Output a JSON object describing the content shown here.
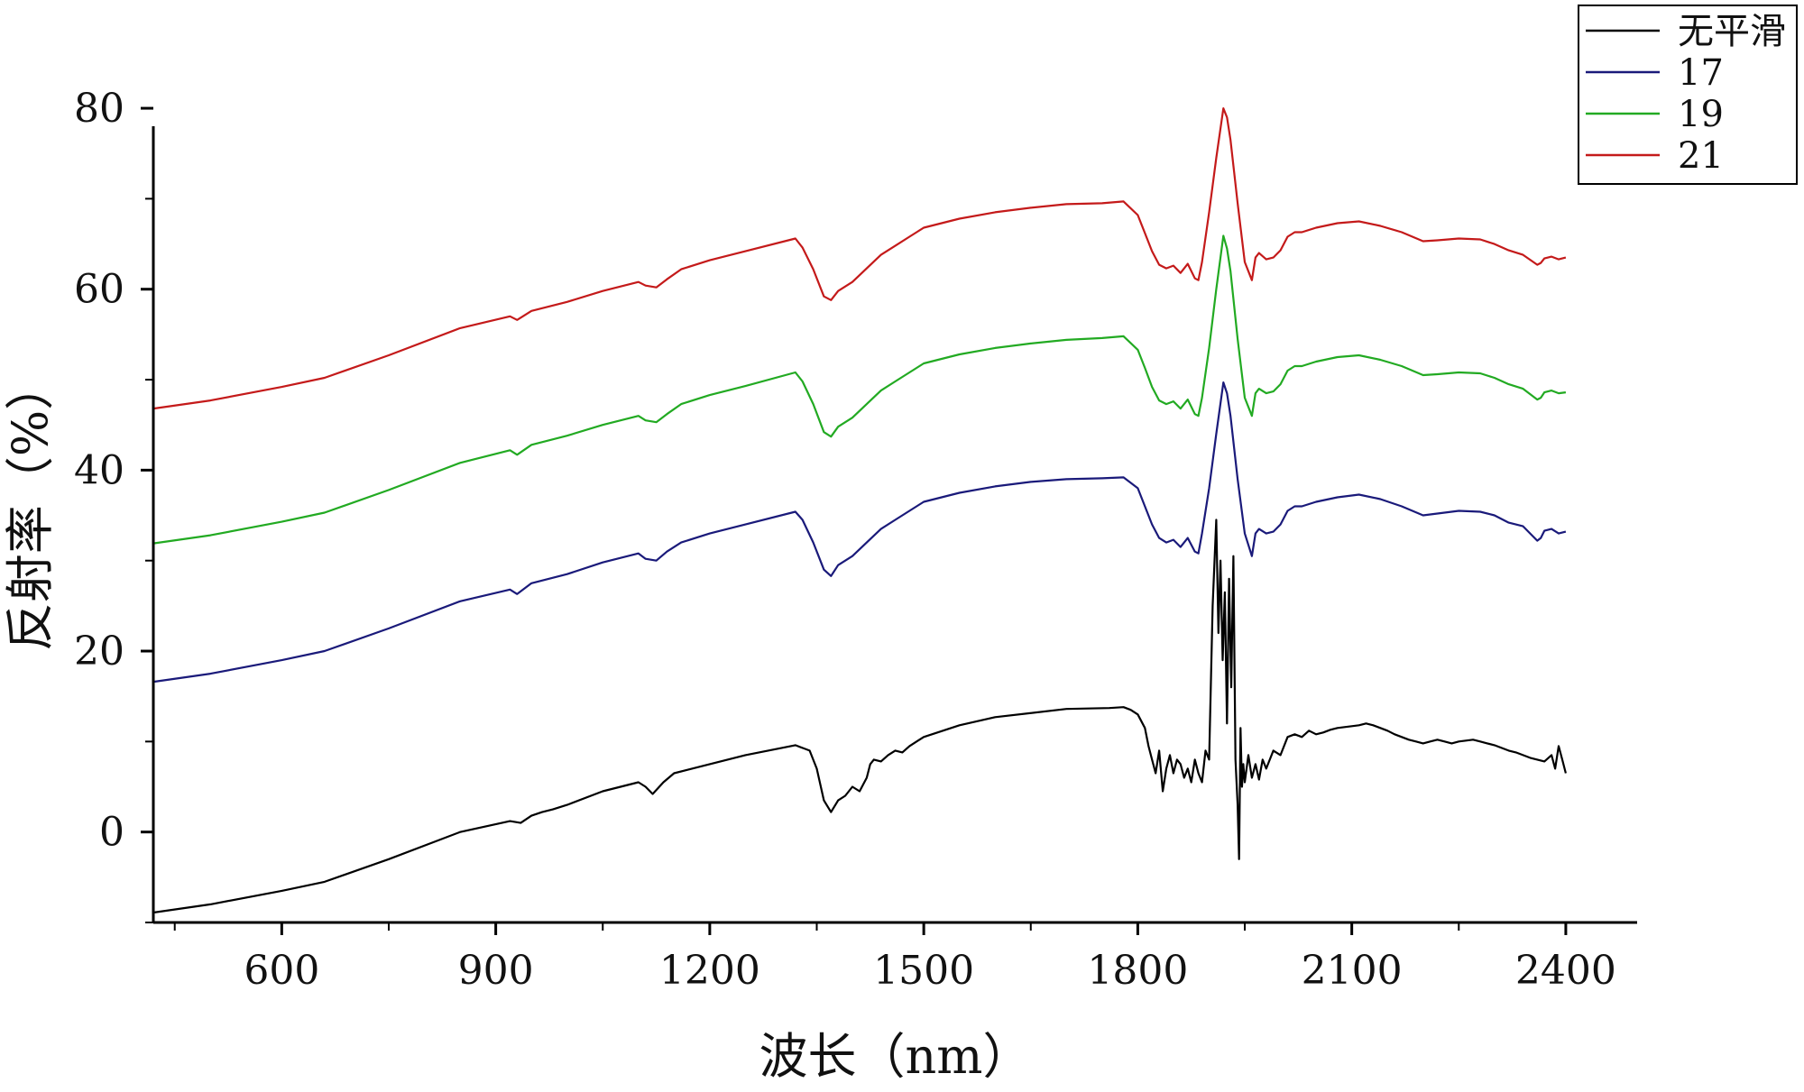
{
  "chart_data": {
    "type": "line",
    "title": "",
    "xlabel": "波长（nm）",
    "ylabel": "反射率（%）",
    "xlim": [
      420,
      2500
    ],
    "ylim": [
      -10,
      82
    ],
    "xticks": [
      "600",
      "900",
      "1200",
      "1500",
      "1800",
      "2100",
      "2400"
    ],
    "yticks": [
      "0",
      "20",
      "40",
      "60",
      "80"
    ],
    "grid": false,
    "legend_position": "top-right",
    "series": [
      {
        "name": "无平滑",
        "color": "#000000",
        "x": [
          420,
          500,
          600,
          660,
          750,
          850,
          920,
          935,
          950,
          965,
          980,
          1000,
          1050,
          1100,
          1110,
          1120,
          1135,
          1150,
          1200,
          1250,
          1320,
          1340,
          1350,
          1360,
          1370,
          1380,
          1390,
          1400,
          1410,
          1420,
          1425,
          1430,
          1440,
          1450,
          1460,
          1470,
          1480,
          1500,
          1550,
          1600,
          1700,
          1760,
          1780,
          1790,
          1800,
          1810,
          1815,
          1820,
          1825,
          1830,
          1835,
          1840,
          1845,
          1850,
          1855,
          1860,
          1865,
          1870,
          1875,
          1880,
          1885,
          1890,
          1895,
          1900,
          1905,
          1910,
          1913,
          1916,
          1919,
          1922,
          1925,
          1928,
          1931,
          1934,
          1937,
          1940,
          1942,
          1944,
          1946,
          1948,
          1950,
          1955,
          1960,
          1965,
          1970,
          1975,
          1980,
          1990,
          2000,
          2010,
          2020,
          2030,
          2040,
          2050,
          2060,
          2070,
          2080,
          2090,
          2100,
          2110,
          2120,
          2130,
          2140,
          2150,
          2160,
          2170,
          2180,
          2190,
          2200,
          2210,
          2220,
          2230,
          2240,
          2250,
          2260,
          2270,
          2280,
          2290,
          2300,
          2310,
          2320,
          2330,
          2340,
          2350,
          2360,
          2370,
          2380,
          2385,
          2390,
          2395,
          2400
        ],
        "y": [
          -8.9,
          -8.0,
          -6.5,
          -5.5,
          -3.0,
          0.0,
          1.2,
          1.0,
          1.8,
          2.2,
          2.5,
          3.0,
          4.5,
          5.5,
          5.0,
          4.2,
          5.5,
          6.5,
          7.5,
          8.5,
          9.6,
          9.0,
          7.0,
          3.5,
          2.2,
          3.5,
          4.0,
          5.0,
          4.5,
          6.0,
          7.5,
          8.0,
          7.8,
          8.5,
          9.0,
          8.8,
          9.5,
          10.5,
          11.8,
          12.7,
          13.6,
          13.7,
          13.8,
          13.5,
          13.0,
          11.5,
          9.5,
          8.0,
          6.5,
          9.0,
          4.5,
          7.0,
          8.5,
          6.5,
          8.0,
          7.5,
          6.0,
          7.0,
          5.5,
          8.0,
          6.5,
          5.5,
          9.0,
          8.0,
          25.0,
          34.5,
          22.0,
          30.0,
          19.0,
          26.5,
          12.0,
          28.0,
          16.0,
          30.5,
          8.0,
          3.0,
          -3.0,
          11.5,
          5.0,
          7.5,
          5.5,
          8.5,
          6.0,
          7.5,
          5.8,
          8.0,
          7.0,
          9.0,
          8.5,
          10.5,
          10.8,
          10.5,
          11.2,
          10.8,
          11.0,
          11.3,
          11.5,
          11.6,
          11.7,
          11.8,
          12.0,
          11.8,
          11.5,
          11.2,
          10.8,
          10.5,
          10.2,
          10.0,
          9.8,
          10.0,
          10.2,
          10.0,
          9.8,
          10.0,
          10.1,
          10.2,
          10.0,
          9.8,
          9.6,
          9.3,
          9.0,
          8.8,
          8.5,
          8.2,
          8.0,
          7.8,
          8.5,
          7.0,
          9.5,
          8.0,
          6.5
        ]
      },
      {
        "name": "17",
        "color": "#1a1a7a",
        "x": [
          420,
          500,
          600,
          660,
          750,
          850,
          920,
          930,
          950,
          1000,
          1050,
          1100,
          1110,
          1125,
          1140,
          1160,
          1200,
          1250,
          1320,
          1330,
          1345,
          1360,
          1370,
          1380,
          1400,
          1420,
          1440,
          1460,
          1480,
          1500,
          1550,
          1600,
          1650,
          1700,
          1750,
          1780,
          1800,
          1810,
          1820,
          1830,
          1840,
          1850,
          1860,
          1870,
          1880,
          1885,
          1890,
          1900,
          1910,
          1920,
          1925,
          1930,
          1940,
          1950,
          1960,
          1965,
          1970,
          1980,
          1990,
          2000,
          2010,
          2020,
          2030,
          2050,
          2080,
          2110,
          2140,
          2170,
          2200,
          2220,
          2250,
          2280,
          2300,
          2320,
          2340,
          2360,
          2365,
          2370,
          2380,
          2390,
          2400
        ],
        "y": [
          16.6,
          17.5,
          19.0,
          20.0,
          22.5,
          25.5,
          26.8,
          26.3,
          27.5,
          28.5,
          29.8,
          30.8,
          30.2,
          30.0,
          31.0,
          32.0,
          33.0,
          34.0,
          35.4,
          34.5,
          32.0,
          29.0,
          28.3,
          29.5,
          30.5,
          32.0,
          33.5,
          34.5,
          35.5,
          36.5,
          37.5,
          38.2,
          38.7,
          39.0,
          39.1,
          39.2,
          38.0,
          36.0,
          34.0,
          32.5,
          32.0,
          32.3,
          31.5,
          32.5,
          31.0,
          30.8,
          33.0,
          38.0,
          44.0,
          49.7,
          48.5,
          46.0,
          39.0,
          33.0,
          30.5,
          33.0,
          33.5,
          33.0,
          33.2,
          34.0,
          35.5,
          36.0,
          36.0,
          36.5,
          37.0,
          37.3,
          36.8,
          36.0,
          35.0,
          35.2,
          35.5,
          35.4,
          35.0,
          34.2,
          33.8,
          32.2,
          32.5,
          33.3,
          33.5,
          33.0,
          33.2
        ]
      },
      {
        "name": "19",
        "color": "#22aa22",
        "x": [
          420,
          500,
          600,
          660,
          750,
          850,
          920,
          930,
          950,
          1000,
          1050,
          1100,
          1110,
          1125,
          1140,
          1160,
          1200,
          1250,
          1320,
          1330,
          1345,
          1360,
          1370,
          1380,
          1400,
          1420,
          1440,
          1460,
          1480,
          1500,
          1550,
          1600,
          1650,
          1700,
          1750,
          1780,
          1800,
          1810,
          1820,
          1830,
          1840,
          1850,
          1860,
          1870,
          1880,
          1885,
          1890,
          1900,
          1910,
          1920,
          1925,
          1930,
          1940,
          1950,
          1960,
          1965,
          1970,
          1980,
          1990,
          2000,
          2010,
          2020,
          2030,
          2050,
          2080,
          2110,
          2140,
          2170,
          2200,
          2220,
          2250,
          2280,
          2300,
          2320,
          2340,
          2360,
          2365,
          2370,
          2380,
          2390,
          2400
        ],
        "y": [
          31.9,
          32.8,
          34.3,
          35.3,
          37.8,
          40.8,
          42.2,
          41.7,
          42.8,
          43.8,
          45.0,
          46.0,
          45.5,
          45.3,
          46.2,
          47.3,
          48.3,
          49.3,
          50.8,
          49.8,
          47.3,
          44.2,
          43.7,
          44.8,
          45.8,
          47.3,
          48.8,
          49.8,
          50.8,
          51.8,
          52.8,
          53.5,
          54.0,
          54.4,
          54.6,
          54.8,
          53.3,
          51.3,
          49.2,
          47.7,
          47.3,
          47.6,
          46.8,
          47.8,
          46.2,
          46.0,
          48.0,
          53.5,
          60.0,
          65.9,
          64.5,
          62.0,
          54.5,
          48.0,
          46.0,
          48.5,
          49.0,
          48.5,
          48.7,
          49.5,
          51.0,
          51.5,
          51.5,
          52.0,
          52.5,
          52.7,
          52.2,
          51.5,
          50.5,
          50.6,
          50.8,
          50.7,
          50.2,
          49.5,
          49.0,
          47.8,
          48.0,
          48.6,
          48.8,
          48.5,
          48.6
        ]
      },
      {
        "name": "21",
        "color": "#c41a1a",
        "x": [
          420,
          500,
          600,
          660,
          750,
          850,
          920,
          930,
          950,
          1000,
          1050,
          1100,
          1110,
          1125,
          1140,
          1160,
          1200,
          1250,
          1320,
          1330,
          1345,
          1360,
          1370,
          1380,
          1400,
          1420,
          1440,
          1460,
          1480,
          1500,
          1550,
          1600,
          1650,
          1700,
          1750,
          1780,
          1800,
          1810,
          1820,
          1830,
          1840,
          1850,
          1860,
          1870,
          1880,
          1885,
          1890,
          1900,
          1910,
          1920,
          1925,
          1930,
          1940,
          1950,
          1960,
          1965,
          1970,
          1980,
          1990,
          2000,
          2010,
          2020,
          2030,
          2050,
          2080,
          2110,
          2140,
          2170,
          2200,
          2220,
          2250,
          2280,
          2300,
          2320,
          2340,
          2360,
          2365,
          2370,
          2380,
          2390,
          2400
        ],
        "y": [
          46.8,
          47.7,
          49.2,
          50.2,
          52.7,
          55.7,
          57.0,
          56.6,
          57.6,
          58.6,
          59.8,
          60.8,
          60.4,
          60.2,
          61.1,
          62.2,
          63.2,
          64.2,
          65.6,
          64.6,
          62.2,
          59.2,
          58.8,
          59.8,
          60.8,
          62.3,
          63.8,
          64.8,
          65.8,
          66.8,
          67.8,
          68.5,
          69.0,
          69.4,
          69.5,
          69.7,
          68.2,
          66.2,
          64.2,
          62.7,
          62.3,
          62.6,
          61.8,
          62.8,
          61.2,
          61.0,
          63.0,
          68.5,
          74.5,
          80.0,
          79.0,
          76.5,
          69.5,
          63.0,
          61.0,
          63.5,
          64.0,
          63.3,
          63.5,
          64.3,
          65.8,
          66.3,
          66.3,
          66.8,
          67.3,
          67.5,
          67.0,
          66.3,
          65.3,
          65.4,
          65.6,
          65.5,
          65.0,
          64.3,
          63.8,
          62.7,
          62.9,
          63.4,
          63.6,
          63.3,
          63.5
        ]
      }
    ]
  }
}
